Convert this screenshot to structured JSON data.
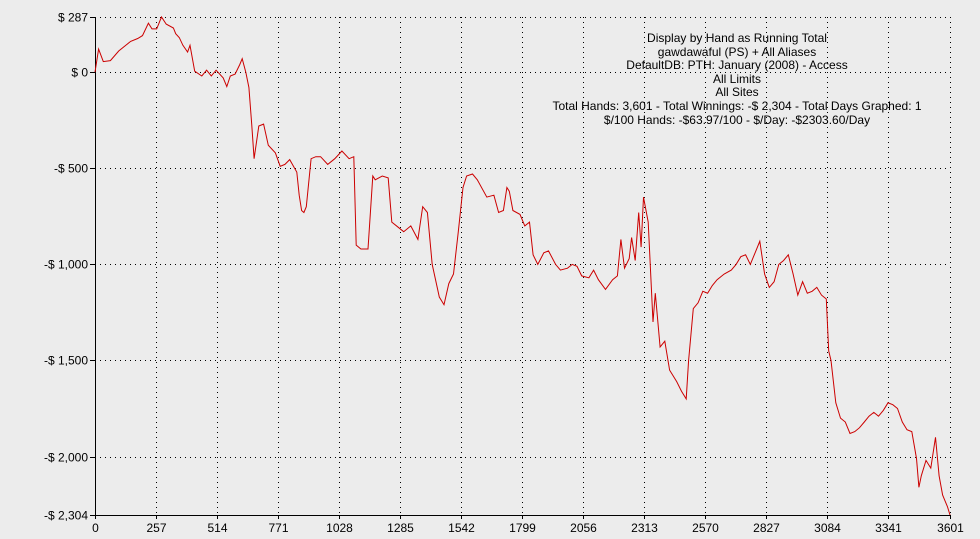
{
  "chart_data": {
    "type": "line",
    "title": "Display by Hand as Running Total",
    "subtitle_lines": [
      "gawdawaful (PS) + All Aliases",
      "DefaultDB: PTH: January (2008) - Access",
      "All Limits",
      "All Sites",
      "Total Hands: 3,601 - Total Winnings: -$ 2,304 - Total Days Graphed: 1",
      "$/100 Hands: -$63.97/100 - $/Day: -$2303.60/Day"
    ],
    "xlabel": "",
    "ylabel": "",
    "xlim": [
      0,
      3601
    ],
    "ylim": [
      -2304,
      287
    ],
    "x_ticks": [
      {
        "value": 0,
        "label": "0"
      },
      {
        "value": 257,
        "label": "257"
      },
      {
        "value": 514,
        "label": "514"
      },
      {
        "value": 771,
        "label": "771"
      },
      {
        "value": 1028,
        "label": "1028"
      },
      {
        "value": 1285,
        "label": "1285"
      },
      {
        "value": 1542,
        "label": "1542"
      },
      {
        "value": 1799,
        "label": "1799"
      },
      {
        "value": 2056,
        "label": "2056"
      },
      {
        "value": 2313,
        "label": "2313"
      },
      {
        "value": 2570,
        "label": "2570"
      },
      {
        "value": 2827,
        "label": "2827"
      },
      {
        "value": 3084,
        "label": "3084"
      },
      {
        "value": 3341,
        "label": "3341"
      },
      {
        "value": 3601,
        "label": "3601"
      }
    ],
    "y_ticks": [
      {
        "value": 287,
        "label": "$ 287"
      },
      {
        "value": 0,
        "label": "$ 0"
      },
      {
        "value": -500,
        "label": "-$ 500"
      },
      {
        "value": -1000,
        "label": "-$ 1,000"
      },
      {
        "value": -1500,
        "label": "-$ 1,500"
      },
      {
        "value": -2000,
        "label": "-$ 2,000"
      },
      {
        "value": -2304,
        "label": "-$ 2,304"
      }
    ],
    "grid": true,
    "series": [
      {
        "color": "#cc0000",
        "points": [
          [
            0,
            0
          ],
          [
            15,
            120
          ],
          [
            35,
            55
          ],
          [
            65,
            60
          ],
          [
            100,
            110
          ],
          [
            150,
            160
          ],
          [
            180,
            175
          ],
          [
            200,
            190
          ],
          [
            225,
            255
          ],
          [
            240,
            225
          ],
          [
            260,
            225
          ],
          [
            280,
            287
          ],
          [
            300,
            250
          ],
          [
            330,
            230
          ],
          [
            340,
            200
          ],
          [
            355,
            180
          ],
          [
            370,
            140
          ],
          [
            390,
            105
          ],
          [
            400,
            140
          ],
          [
            420,
            5
          ],
          [
            450,
            -20
          ],
          [
            470,
            10
          ],
          [
            490,
            -20
          ],
          [
            510,
            10
          ],
          [
            540,
            -30
          ],
          [
            555,
            -75
          ],
          [
            570,
            -20
          ],
          [
            590,
            -10
          ],
          [
            610,
            40
          ],
          [
            620,
            70
          ],
          [
            635,
            0
          ],
          [
            648,
            -80
          ],
          [
            660,
            -270
          ],
          [
            670,
            -450
          ],
          [
            690,
            -280
          ],
          [
            710,
            -270
          ],
          [
            730,
            -380
          ],
          [
            760,
            -420
          ],
          [
            780,
            -490
          ],
          [
            800,
            -480
          ],
          [
            820,
            -455
          ],
          [
            850,
            -520
          ],
          [
            860,
            -640
          ],
          [
            870,
            -720
          ],
          [
            880,
            -730
          ],
          [
            890,
            -700
          ],
          [
            910,
            -450
          ],
          [
            930,
            -440
          ],
          [
            950,
            -440
          ],
          [
            980,
            -480
          ],
          [
            1010,
            -450
          ],
          [
            1040,
            -410
          ],
          [
            1070,
            -450
          ],
          [
            1090,
            -440
          ],
          [
            1100,
            -900
          ],
          [
            1120,
            -920
          ],
          [
            1150,
            -920
          ],
          [
            1170,
            -540
          ],
          [
            1180,
            -560
          ],
          [
            1210,
            -540
          ],
          [
            1235,
            -550
          ],
          [
            1250,
            -780
          ],
          [
            1280,
            -810
          ],
          [
            1300,
            -830
          ],
          [
            1330,
            -800
          ],
          [
            1360,
            -870
          ],
          [
            1380,
            -700
          ],
          [
            1400,
            -730
          ],
          [
            1420,
            -1000
          ],
          [
            1450,
            -1170
          ],
          [
            1470,
            -1210
          ],
          [
            1490,
            -1100
          ],
          [
            1510,
            -1050
          ],
          [
            1530,
            -830
          ],
          [
            1550,
            -600
          ],
          [
            1565,
            -540
          ],
          [
            1590,
            -530
          ],
          [
            1610,
            -560
          ],
          [
            1650,
            -650
          ],
          [
            1680,
            -640
          ],
          [
            1700,
            -730
          ],
          [
            1720,
            -720
          ],
          [
            1735,
            -600
          ],
          [
            1745,
            -620
          ],
          [
            1760,
            -720
          ],
          [
            1790,
            -740
          ],
          [
            1810,
            -800
          ],
          [
            1830,
            -780
          ],
          [
            1845,
            -950
          ],
          [
            1865,
            -1000
          ],
          [
            1890,
            -940
          ],
          [
            1910,
            -930
          ],
          [
            1940,
            -1000
          ],
          [
            1960,
            -1030
          ],
          [
            1990,
            -1020
          ],
          [
            2010,
            -1000
          ],
          [
            2030,
            -1010
          ],
          [
            2050,
            -1060
          ],
          [
            2080,
            -1070
          ],
          [
            2100,
            -1030
          ],
          [
            2120,
            -1080
          ],
          [
            2150,
            -1130
          ],
          [
            2180,
            -1080
          ],
          [
            2200,
            -1060
          ],
          [
            2215,
            -870
          ],
          [
            2230,
            -1020
          ],
          [
            2250,
            -970
          ],
          [
            2260,
            -860
          ],
          [
            2275,
            -980
          ],
          [
            2290,
            -730
          ],
          [
            2300,
            -910
          ],
          [
            2310,
            -650
          ],
          [
            2330,
            -780
          ],
          [
            2350,
            -1300
          ],
          [
            2360,
            -1150
          ],
          [
            2380,
            -1430
          ],
          [
            2400,
            -1400
          ],
          [
            2420,
            -1550
          ],
          [
            2450,
            -1610
          ],
          [
            2470,
            -1660
          ],
          [
            2490,
            -1700
          ],
          [
            2500,
            -1500
          ],
          [
            2520,
            -1230
          ],
          [
            2540,
            -1200
          ],
          [
            2560,
            -1140
          ],
          [
            2580,
            -1150
          ],
          [
            2600,
            -1110
          ],
          [
            2620,
            -1080
          ],
          [
            2650,
            -1050
          ],
          [
            2680,
            -1030
          ],
          [
            2700,
            -1000
          ],
          [
            2720,
            -960
          ],
          [
            2740,
            -950
          ],
          [
            2760,
            -1000
          ],
          [
            2780,
            -940
          ],
          [
            2800,
            -880
          ],
          [
            2820,
            -1050
          ],
          [
            2840,
            -1120
          ],
          [
            2860,
            -1090
          ],
          [
            2880,
            -1000
          ],
          [
            2900,
            -980
          ],
          [
            2920,
            -950
          ],
          [
            2940,
            -1050
          ],
          [
            2960,
            -1160
          ],
          [
            2980,
            -1090
          ],
          [
            3000,
            -1150
          ],
          [
            3020,
            -1140
          ],
          [
            3040,
            -1120
          ],
          [
            3060,
            -1160
          ],
          [
            3080,
            -1180
          ],
          [
            3090,
            -1450
          ],
          [
            3100,
            -1500
          ],
          [
            3120,
            -1720
          ],
          [
            3140,
            -1800
          ],
          [
            3160,
            -1820
          ],
          [
            3180,
            -1880
          ],
          [
            3200,
            -1870
          ],
          [
            3220,
            -1850
          ],
          [
            3240,
            -1820
          ],
          [
            3260,
            -1790
          ],
          [
            3280,
            -1770
          ],
          [
            3300,
            -1790
          ],
          [
            3320,
            -1760
          ],
          [
            3340,
            -1720
          ],
          [
            3360,
            -1730
          ],
          [
            3380,
            -1750
          ],
          [
            3400,
            -1820
          ],
          [
            3420,
            -1860
          ],
          [
            3440,
            -1870
          ],
          [
            3460,
            -2010
          ],
          [
            3470,
            -2160
          ],
          [
            3480,
            -2100
          ],
          [
            3500,
            -2020
          ],
          [
            3520,
            -2060
          ],
          [
            3540,
            -1900
          ],
          [
            3555,
            -2100
          ],
          [
            3570,
            -2200
          ],
          [
            3580,
            -2230
          ],
          [
            3590,
            -2260
          ],
          [
            3601,
            -2304
          ]
        ]
      }
    ]
  },
  "colors": {
    "background": "#ececec",
    "line": "#cc0000",
    "grid": "#000000",
    "text": "#000000"
  }
}
